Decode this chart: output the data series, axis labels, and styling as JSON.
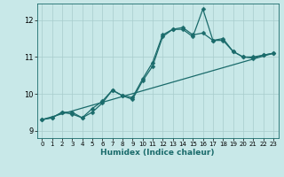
{
  "xlabel": "Humidex (Indice chaleur)",
  "ylabel": "",
  "bg_color": "#c8e8e8",
  "grid_color": "#a8cccc",
  "line_color": "#1a6b6b",
  "xlim": [
    -0.5,
    23.5
  ],
  "ylim": [
    8.8,
    12.45
  ],
  "yticks": [
    9,
    10,
    11,
    12
  ],
  "xticks": [
    0,
    1,
    2,
    3,
    4,
    5,
    6,
    7,
    8,
    9,
    10,
    11,
    12,
    13,
    14,
    15,
    16,
    17,
    18,
    19,
    20,
    21,
    22,
    23
  ],
  "line1_x": [
    0,
    1,
    2,
    3,
    4,
    5,
    6,
    7,
    8,
    9,
    10,
    11,
    12,
    13,
    14,
    15,
    16,
    17,
    18,
    19,
    20,
    21,
    22,
    23
  ],
  "line1_y": [
    9.3,
    9.35,
    9.5,
    9.45,
    9.35,
    9.5,
    9.75,
    10.1,
    9.95,
    9.85,
    10.35,
    10.75,
    11.55,
    11.75,
    11.75,
    11.55,
    12.3,
    11.45,
    11.45,
    11.15,
    11.0,
    10.97,
    11.05,
    11.1
  ],
  "line2_x": [
    0,
    1,
    2,
    3,
    4,
    5,
    6,
    7,
    8,
    9,
    10,
    11,
    12,
    13,
    14,
    15,
    16,
    17,
    18,
    19,
    20,
    21,
    22,
    23
  ],
  "line2_y": [
    9.3,
    9.35,
    9.5,
    9.5,
    9.35,
    9.6,
    9.8,
    10.1,
    9.95,
    9.9,
    10.4,
    10.85,
    11.6,
    11.75,
    11.8,
    11.6,
    11.65,
    11.45,
    11.5,
    11.15,
    11.0,
    11.0,
    11.05,
    11.1
  ],
  "line3_x": [
    0,
    23
  ],
  "line3_y": [
    9.3,
    11.1
  ],
  "marker_size": 2.5,
  "linewidth": 0.9
}
